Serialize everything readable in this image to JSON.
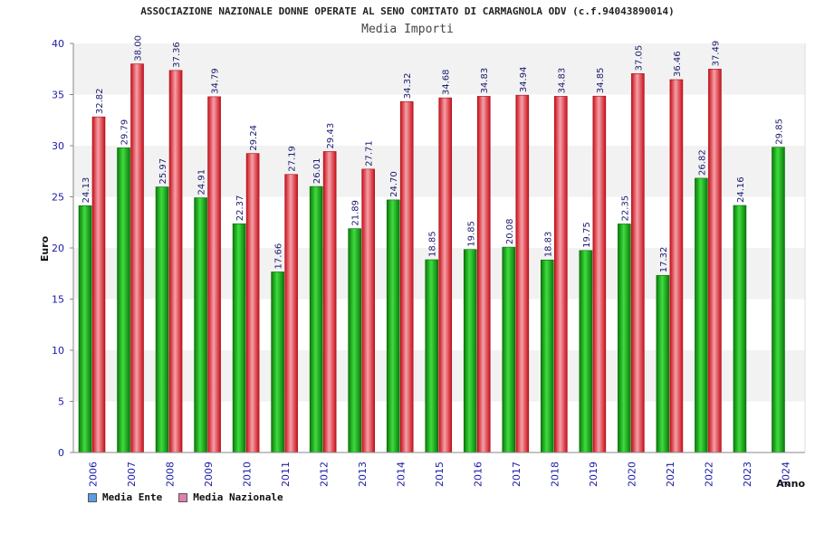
{
  "chart_data": {
    "type": "bar",
    "title": "ASSOCIAZIONE NAZIONALE DONNE OPERATE AL SENO COMITATO DI CARMAGNOLA ODV (c.f.94043890014)",
    "subtitle": "Media Importi",
    "xlabel": "Anno",
    "ylabel": "Euro",
    "ylim": [
      0,
      40
    ],
    "yticks": [
      "0",
      "5",
      "10",
      "15",
      "20",
      "25",
      "30",
      "35",
      "40"
    ],
    "grid": "horizontal bands",
    "legend_position": "bottom-left",
    "categories": [
      "2006",
      "2007",
      "2008",
      "2009",
      "2010",
      "2011",
      "2012",
      "2013",
      "2014",
      "2015",
      "2016",
      "2017",
      "2018",
      "2019",
      "2020",
      "2021",
      "2022",
      "2023",
      "2024"
    ],
    "series": [
      {
        "name": "Media Ente",
        "legend_color": "#5a9de0",
        "bar_color": "#1fa51f",
        "values": [
          24.13,
          29.79,
          25.97,
          24.91,
          22.37,
          17.66,
          26.01,
          21.89,
          24.7,
          18.85,
          19.85,
          20.08,
          18.83,
          19.75,
          22.35,
          17.32,
          26.82,
          24.16,
          29.85
        ],
        "labels": [
          "24.13",
          "29.79",
          "25.97",
          "24.91",
          "22.37",
          "17.66",
          "26.01",
          "21.89",
          "24.70",
          "18.85",
          "19.85",
          "20.08",
          "18.83",
          "19.75",
          "22.35",
          "17.32",
          "26.82",
          "24.16",
          "29.85"
        ]
      },
      {
        "name": "Media Nazionale",
        "legend_color": "#e080b0",
        "bar_color": "#e8303a",
        "values": [
          32.82,
          38.0,
          37.36,
          34.79,
          29.24,
          27.19,
          29.43,
          27.71,
          34.32,
          34.68,
          34.83,
          34.94,
          34.83,
          34.85,
          37.05,
          36.46,
          37.49,
          null,
          null
        ],
        "labels": [
          "32.82",
          "38.00",
          "37.36",
          "34.79",
          "29.24",
          "27.19",
          "29.43",
          "27.71",
          "34.32",
          "34.68",
          "34.83",
          "34.94",
          "34.83",
          "34.85",
          "37.05",
          "36.46",
          "37.49",
          "",
          ""
        ]
      }
    ]
  }
}
